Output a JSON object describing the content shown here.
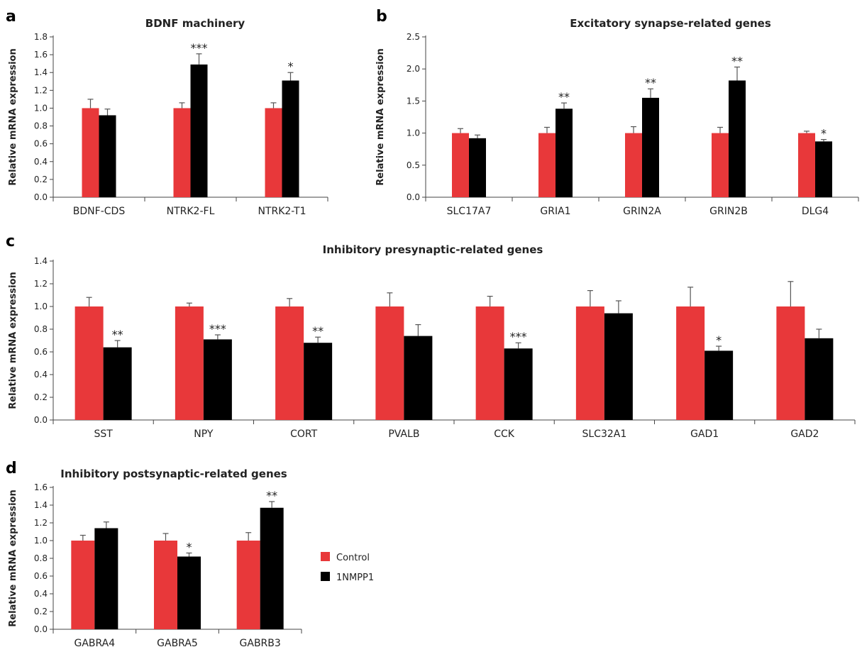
{
  "colors": {
    "control": "#e8383a",
    "treated": "#000000",
    "axis": "#444444",
    "errbar": "#555555"
  },
  "legend": {
    "items": [
      "Control",
      "1NMPP1"
    ]
  },
  "chart_data": [
    {
      "id": "a",
      "panel_label": "a",
      "type": "bar",
      "title": "BDNF machinery",
      "ylabel": "Relative mRNA expression",
      "ylim": [
        0,
        1.8
      ],
      "yticks": [
        "0.0",
        "0.2",
        "0.4",
        "0.6",
        "0.8",
        "1.0",
        "1.2",
        "1.4",
        "1.6",
        "1.8"
      ],
      "categories": [
        "BDNF-CDS",
        "NTRK2-FL",
        "NTRK2-T1"
      ],
      "series": [
        {
          "name": "Control",
          "values": [
            1.0,
            1.0,
            1.0
          ],
          "errors": [
            0.1,
            0.06,
            0.06
          ]
        },
        {
          "name": "1NMPP1",
          "values": [
            0.92,
            1.49,
            1.31
          ],
          "errors": [
            0.07,
            0.12,
            0.09
          ]
        }
      ],
      "significance": [
        "",
        "***",
        "*"
      ]
    },
    {
      "id": "b",
      "panel_label": "b",
      "type": "bar",
      "title": "Excitatory synapse-related genes",
      "ylabel": "Relative mRNA expression",
      "ylim": [
        0,
        2.5
      ],
      "yticks": [
        "0.0",
        "0.5",
        "1.0",
        "1.5",
        "2.0",
        "2.5"
      ],
      "categories": [
        "SLC17A7",
        "GRIA1",
        "GRIN2A",
        "GRIN2B",
        "DLG4"
      ],
      "series": [
        {
          "name": "Control",
          "values": [
            1.0,
            1.0,
            1.0,
            1.0,
            1.0
          ],
          "errors": [
            0.07,
            0.09,
            0.1,
            0.09,
            0.03
          ]
        },
        {
          "name": "1NMPP1",
          "values": [
            0.92,
            1.38,
            1.55,
            1.82,
            0.87
          ],
          "errors": [
            0.05,
            0.09,
            0.14,
            0.21,
            0.03
          ]
        }
      ],
      "significance": [
        "",
        "**",
        "**",
        "**",
        "*"
      ]
    },
    {
      "id": "c",
      "panel_label": "c",
      "type": "bar",
      "title": "Inhibitory presynaptic-related genes",
      "ylabel": "Relative mRNA expression",
      "ylim": [
        0,
        1.4
      ],
      "yticks": [
        "0.0",
        "0.2",
        "0.4",
        "0.6",
        "0.8",
        "1.0",
        "1.2",
        "1.4"
      ],
      "categories": [
        "SST",
        "NPY",
        "CORT",
        "PVALB",
        "CCK",
        "SLC32A1",
        "GAD1",
        "GAD2"
      ],
      "series": [
        {
          "name": "Control",
          "values": [
            1.0,
            1.0,
            1.0,
            1.0,
            1.0,
            1.0,
            1.0,
            1.0
          ],
          "errors": [
            0.08,
            0.03,
            0.07,
            0.12,
            0.09,
            0.14,
            0.17,
            0.22
          ]
        },
        {
          "name": "1NMPP1",
          "values": [
            0.64,
            0.71,
            0.68,
            0.74,
            0.63,
            0.94,
            0.61,
            0.72
          ],
          "errors": [
            0.06,
            0.04,
            0.05,
            0.1,
            0.05,
            0.11,
            0.04,
            0.08
          ]
        }
      ],
      "significance": [
        "**",
        "***",
        "**",
        "",
        "***",
        "",
        "*",
        ""
      ]
    },
    {
      "id": "d",
      "panel_label": "d",
      "type": "bar",
      "title": "Inhibitory postsynaptic-related genes",
      "ylabel": "Relative mRNA expression",
      "ylim": [
        0,
        1.6
      ],
      "yticks": [
        "0.0",
        "0.2",
        "0.4",
        "0.6",
        "0.8",
        "1.0",
        "1.2",
        "1.4",
        "1.6"
      ],
      "categories": [
        "GABRA4",
        "GABRA5",
        "GABRB3"
      ],
      "series": [
        {
          "name": "Control",
          "values": [
            1.0,
            1.0,
            1.0
          ],
          "errors": [
            0.06,
            0.08,
            0.09
          ]
        },
        {
          "name": "1NMPP1",
          "values": [
            1.14,
            0.82,
            1.37
          ],
          "errors": [
            0.07,
            0.04,
            0.07
          ]
        }
      ],
      "significance": [
        "",
        "*",
        "**"
      ]
    }
  ]
}
